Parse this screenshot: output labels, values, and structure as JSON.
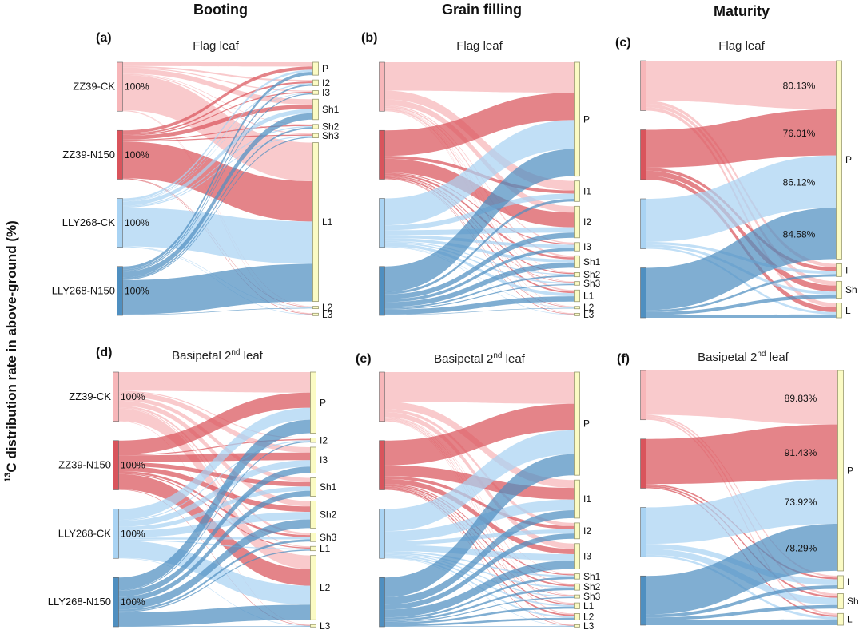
{
  "figure": {
    "columns": [
      "Booting",
      "Grain filling",
      "Maturity"
    ],
    "ylabel_sup": "13",
    "ylabel": "C distribution rate in above-ground (%)"
  },
  "colors": {
    "ZZ39-CK": "#f7b6b9",
    "ZZ39-N150": "#d9545c",
    "LLY268-CK": "#a9d3f3",
    "LLY268-N150": "#4f8fc0",
    "target_fill": "#fbfbc4",
    "target_stroke": "#9a9a70"
  },
  "chart_data": [
    {
      "type": "sankey",
      "label": "(a)",
      "title": "Flag leaf",
      "stage": "Booting",
      "sources": [
        "ZZ39-CK",
        "ZZ39-N150",
        "LLY268-CK",
        "LLY268-N150"
      ],
      "source_values": [
        "100%",
        "100%",
        "100%",
        "100%"
      ],
      "targets": [
        "P",
        "I2",
        "I3",
        "Sh1",
        "Sh2",
        "Sh3",
        "L1",
        "L2",
        "L3"
      ],
      "flows": [
        [
          8,
          3,
          2,
          10,
          1,
          2,
          72,
          1,
          1
        ],
        [
          6,
          3,
          2,
          8,
          2,
          2,
          75,
          1,
          1
        ],
        [
          4,
          2,
          1,
          8,
          2,
          2,
          79,
          1,
          1
        ],
        [
          6,
          3,
          2,
          12,
          3,
          2,
          70,
          1,
          1
        ]
      ]
    },
    {
      "type": "sankey",
      "label": "(b)",
      "title": "Flag leaf",
      "stage": "Grain filling",
      "sources": [
        "ZZ39-CK",
        "ZZ39-N150",
        "LLY268-CK",
        "LLY268-N150"
      ],
      "source_values": [
        "",
        "",
        "",
        ""
      ],
      "targets": [
        "P",
        "I1",
        "I2",
        "I3",
        "Sh1",
        "Sh2",
        "Sh3",
        "L1",
        "L2",
        "L3"
      ],
      "flows": [
        [
          58,
          18,
          12,
          2,
          3,
          1,
          1,
          3,
          1,
          1
        ],
        [
          52,
          6,
          28,
          2,
          4,
          2,
          1,
          3,
          1,
          1
        ],
        [
          55,
          10,
          10,
          6,
          6,
          2,
          3,
          6,
          1,
          1
        ],
        [
          52,
          5,
          10,
          6,
          10,
          3,
          2,
          10,
          1,
          1
        ]
      ]
    },
    {
      "type": "sankey",
      "label": "(c)",
      "title": "Flag leaf",
      "stage": "Maturity",
      "sources": [
        "ZZ39-CK",
        "ZZ39-N150",
        "LLY268-CK",
        "LLY268-N150"
      ],
      "source_values": [
        "",
        "",
        "",
        ""
      ],
      "targets": [
        "P",
        "I",
        "Sh",
        "L"
      ],
      "flows": [
        [
          80.13,
          6,
          7,
          6.87
        ],
        [
          76.01,
          6,
          10,
          7.99
        ],
        [
          86.12,
          5,
          5,
          3.88
        ],
        [
          84.58,
          4,
          6,
          5.42
        ]
      ],
      "flow_labels": [
        "80.13%",
        "76.01%",
        "86.12%",
        "84.58%"
      ]
    },
    {
      "type": "sankey",
      "label": "(d)",
      "title": "Basipetal 2nd leaf",
      "stage": "Booting",
      "sources": [
        "ZZ39-CK",
        "ZZ39-N150",
        "LLY268-CK",
        "LLY268-N150"
      ],
      "source_values": [
        "100%",
        "100%",
        "100%",
        "100%"
      ],
      "targets": [
        "P",
        "I2",
        "I3",
        "Sh1",
        "Sh2",
        "Sh3",
        "L1",
        "L2",
        "L3"
      ],
      "flows": [
        [
          38,
          2,
          10,
          8,
          10,
          4,
          2,
          25,
          1
        ],
        [
          28,
          2,
          14,
          8,
          10,
          4,
          2,
          31,
          1
        ],
        [
          22,
          2,
          12,
          8,
          14,
          4,
          2,
          35,
          1
        ],
        [
          25,
          2,
          12,
          10,
          16,
          4,
          2,
          28,
          1
        ]
      ]
    },
    {
      "type": "sankey",
      "label": "(e)",
      "title": "Basipetal 2nd leaf",
      "stage": "Grain filling",
      "sources": [
        "ZZ39-CK",
        "ZZ39-N150",
        "LLY268-CK",
        "LLY268-N150"
      ],
      "source_values": [
        "",
        "",
        "",
        ""
      ],
      "targets": [
        "P",
        "I1",
        "I2",
        "I3",
        "Sh1",
        "Sh2",
        "Sh3",
        "L1",
        "L2",
        "L3"
      ],
      "flows": [
        [
          60,
          15,
          6,
          10,
          1,
          2,
          1,
          2,
          2,
          1
        ],
        [
          50,
          22,
          6,
          10,
          2,
          3,
          1,
          2,
          3,
          1
        ],
        [
          45,
          20,
          8,
          12,
          3,
          3,
          2,
          3,
          3,
          1
        ],
        [
          40,
          15,
          10,
          16,
          4,
          4,
          2,
          4,
          4,
          1
        ]
      ]
    },
    {
      "type": "sankey",
      "label": "(f)",
      "title": "Basipetal 2nd leaf",
      "stage": "Maturity",
      "sources": [
        "ZZ39-CK",
        "ZZ39-N150",
        "LLY268-CK",
        "LLY268-N150"
      ],
      "source_values": [
        "",
        "",
        "",
        ""
      ],
      "targets": [
        "P",
        "I",
        "Sh",
        "L"
      ],
      "flows": [
        [
          89.83,
          3,
          4,
          3.17
        ],
        [
          91.43,
          3,
          3,
          2.57
        ],
        [
          73.92,
          10,
          12,
          4.08
        ],
        [
          78.29,
          6,
          6,
          9.71
        ]
      ],
      "flow_labels": [
        "89.83%",
        "91.43%",
        "73.92%",
        "78.29%"
      ]
    }
  ]
}
